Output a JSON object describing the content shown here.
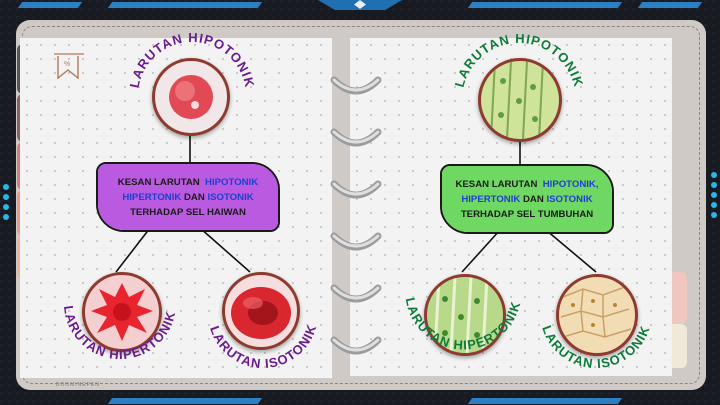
{
  "left": {
    "top_label": "LARUTAN HIPOTONIK",
    "box": {
      "line1_prefix": "KESAN LARUTAN",
      "hipotonik": "HIPOTONIK",
      "hipertonik": "HIPERTONIK",
      "dan": "DAN",
      "isotonik": "ISOTONIK",
      "line3": "TERHADAP SEL HAIWAN"
    },
    "bottom_left_label": "LARUTAN HIPERTONIK",
    "bottom_right_label": "LARUTAN ISOTONIK",
    "box_color": "#b95ae0",
    "label_color": "#6a1c8c"
  },
  "right": {
    "top_label": "LARUTAN HIPOTONIK",
    "box": {
      "line1_prefix": "KESAN LARUTAN",
      "hipotonik": "HIPOTONIK,",
      "hipertonik": "HIPERTONIK",
      "dan": "DAN",
      "isotonik": "ISOTONIK",
      "line3": "TERHADAP SEL TUMBUHAN"
    },
    "bottom_left_label": "LARUTAN HIPERTONIK",
    "bottom_right_label": "LARUTAN ISOTONIK",
    "box_color": "#6fd863",
    "label_color": "#0f7a3a"
  },
  "footer": {
    "brand": "BOOMINEPEN"
  },
  "colors": {
    "stripe": "#2d7fc4",
    "dots": "#29b6e8",
    "circle_border": "#8f3a2f"
  }
}
